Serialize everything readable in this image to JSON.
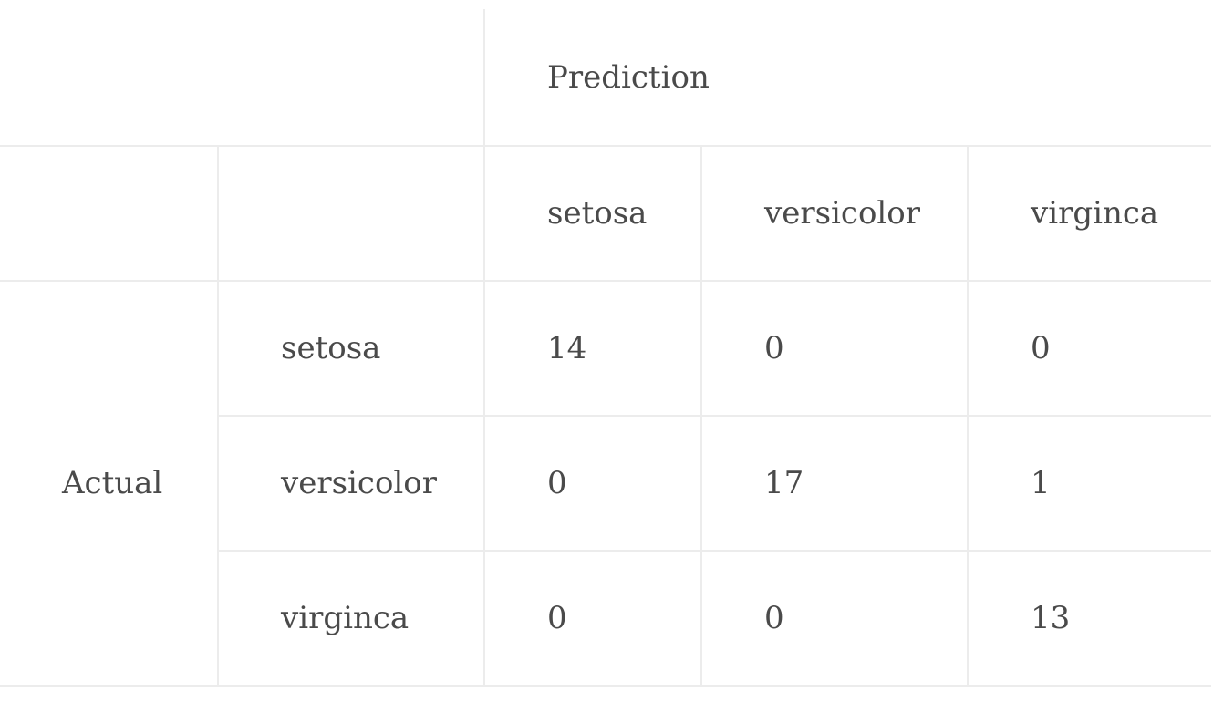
{
  "table": {
    "prediction_label": "Prediction",
    "actual_label": "Actual",
    "column_headers": [
      "setosa",
      "versicolor",
      "virginca"
    ],
    "rows": [
      {
        "label": "setosa",
        "values": [
          "14",
          "0",
          "0"
        ]
      },
      {
        "label": "versicolor",
        "values": [
          "0",
          "17",
          "1"
        ]
      },
      {
        "label": "virginca",
        "values": [
          "0",
          "0",
          "13"
        ]
      }
    ]
  },
  "colors": {
    "text": "#4a4a4a",
    "grid": "#ececec",
    "background": "#ffffff"
  }
}
